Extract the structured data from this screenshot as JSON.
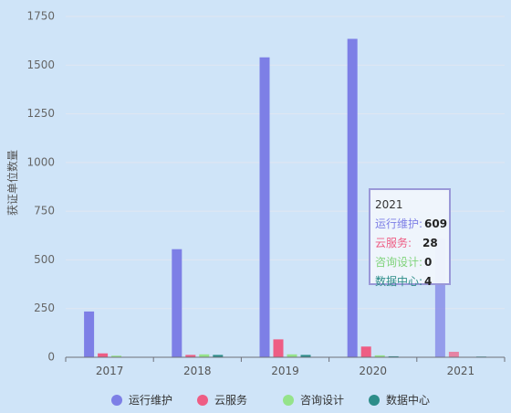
{
  "chart_data": {
    "type": "bar",
    "categories": [
      "2017",
      "2018",
      "2019",
      "2020",
      "2021"
    ],
    "series": [
      {
        "name": "运行维护",
        "color": "#7d7fe6",
        "values": [
          235,
          555,
          1540,
          1635,
          609
        ]
      },
      {
        "name": "云服务",
        "color": "#ee5d84",
        "values": [
          20,
          12,
          92,
          55,
          28
        ]
      },
      {
        "name": "咨询设计",
        "color": "#95e38a",
        "values": [
          8,
          15,
          15,
          10,
          0
        ]
      },
      {
        "name": "数据中心",
        "color": "#2d8d89",
        "values": [
          0,
          12,
          12,
          5,
          4
        ]
      }
    ],
    "ylabel": "获证单位数量",
    "xlabel": "",
    "ylim": [
      0,
      1750
    ],
    "yticks": [
      "0",
      "250",
      "500",
      "750",
      "1000",
      "1250",
      "1500",
      "1750"
    ],
    "grid": true,
    "legend": "bottom-center",
    "highlight_category": "2021"
  },
  "tooltip": {
    "title": "2021",
    "rows": [
      {
        "label": "运行维护:",
        "value": "609",
        "color": "#7d7fe6"
      },
      {
        "label": "云服务:",
        "value": "28",
        "color": "#ee5d84"
      },
      {
        "label": "咨询设计:",
        "value": "0",
        "color": "#7fd37a"
      },
      {
        "label": "数据中心:",
        "value": "4",
        "color": "#2d8d89"
      }
    ]
  }
}
